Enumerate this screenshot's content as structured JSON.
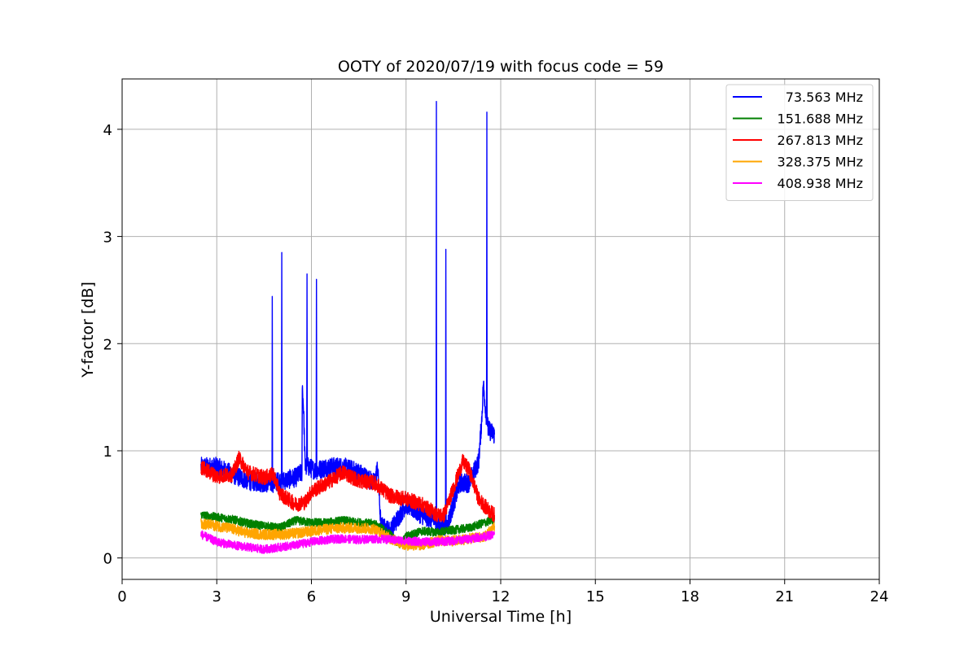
{
  "chart_data": {
    "type": "line",
    "title": "OOTY of 2020/07/19 with focus code = 59",
    "xlabel": "Universal Time [h]",
    "ylabel": "Y-factor [dB]",
    "xlim": [
      0,
      24
    ],
    "ylim": [
      -0.2,
      4.47
    ],
    "xticks": [
      0,
      3,
      6,
      9,
      12,
      15,
      18,
      21,
      24
    ],
    "yticks": [
      0,
      1,
      2,
      3,
      4
    ],
    "grid": true,
    "legend_position": "top-right",
    "series": [
      {
        "name": "73.563 MHz",
        "color": "#0000ff",
        "noise": 0.09,
        "x": [
          2.5,
          3.0,
          3.5,
          4.0,
          4.5,
          4.75,
          4.76,
          4.77,
          4.8,
          5.0,
          5.05,
          5.06,
          5.07,
          5.1,
          5.5,
          5.7,
          5.71,
          5.75,
          5.8,
          5.85,
          5.86,
          5.87,
          5.9,
          6.1,
          6.15,
          6.16,
          6.17,
          6.2,
          6.5,
          7.0,
          7.5,
          8.0,
          8.1,
          8.2,
          8.5,
          9.0,
          9.5,
          9.9,
          9.95,
          9.96,
          9.97,
          10.0,
          10.2,
          10.25,
          10.26,
          10.27,
          10.3,
          10.7,
          11.0,
          11.3,
          11.4,
          11.45,
          11.55,
          11.56,
          11.57,
          11.6,
          11.8
        ],
        "y": [
          0.85,
          0.85,
          0.78,
          0.72,
          0.7,
          0.7,
          2.44,
          0.7,
          0.7,
          0.72,
          0.72,
          2.85,
          0.72,
          0.72,
          0.75,
          0.8,
          1.62,
          1.4,
          0.85,
          0.85,
          2.65,
          0.85,
          0.85,
          0.82,
          0.82,
          2.6,
          0.82,
          0.82,
          0.85,
          0.85,
          0.8,
          0.7,
          0.85,
          0.3,
          0.25,
          0.5,
          0.4,
          0.35,
          0.35,
          4.26,
          0.3,
          0.3,
          0.3,
          0.3,
          2.88,
          0.3,
          0.3,
          0.7,
          0.7,
          0.9,
          1.3,
          1.62,
          1.3,
          4.16,
          1.3,
          1.2,
          1.15
        ]
      },
      {
        "name": "151.688 MHz",
        "color": "#008000",
        "noise": 0.04,
        "x": [
          2.5,
          3.0,
          3.5,
          4.0,
          4.5,
          5.0,
          5.5,
          6.0,
          6.5,
          7.0,
          7.5,
          8.0,
          8.5,
          8.8,
          9.0,
          9.5,
          10.0,
          10.5,
          11.0,
          11.5,
          11.8
        ],
        "y": [
          0.4,
          0.38,
          0.36,
          0.32,
          0.3,
          0.28,
          0.35,
          0.33,
          0.33,
          0.35,
          0.33,
          0.32,
          0.22,
          0.12,
          0.2,
          0.25,
          0.24,
          0.26,
          0.28,
          0.33,
          0.36
        ]
      },
      {
        "name": "267.813 MHz",
        "color": "#ff0000",
        "noise": 0.07,
        "x": [
          2.5,
          3.0,
          3.5,
          3.7,
          4.0,
          4.5,
          4.8,
          5.0,
          5.5,
          5.8,
          6.0,
          6.5,
          7.0,
          7.5,
          8.0,
          8.5,
          9.0,
          9.5,
          10.0,
          10.2,
          10.5,
          10.8,
          11.0,
          11.3,
          11.6,
          11.8
        ],
        "y": [
          0.85,
          0.76,
          0.78,
          0.93,
          0.8,
          0.75,
          0.78,
          0.6,
          0.5,
          0.52,
          0.62,
          0.7,
          0.8,
          0.72,
          0.7,
          0.58,
          0.55,
          0.5,
          0.4,
          0.4,
          0.65,
          0.9,
          0.82,
          0.55,
          0.45,
          0.4
        ]
      },
      {
        "name": "328.375 MHz",
        "color": "#ffa500",
        "noise": 0.05,
        "x": [
          2.5,
          3.0,
          3.5,
          4.0,
          4.5,
          5.0,
          5.5,
          6.0,
          6.5,
          7.0,
          7.5,
          8.0,
          8.5,
          9.0,
          9.5,
          10.0,
          10.5,
          11.0,
          11.5,
          11.8
        ],
        "y": [
          0.32,
          0.3,
          0.27,
          0.23,
          0.22,
          0.22,
          0.23,
          0.25,
          0.27,
          0.28,
          0.28,
          0.27,
          0.18,
          0.12,
          0.12,
          0.16,
          0.16,
          0.18,
          0.2,
          0.3
        ]
      },
      {
        "name": "408.938 MHz",
        "color": "#ff00ff",
        "noise": 0.04,
        "x": [
          2.5,
          3.0,
          3.5,
          4.0,
          4.5,
          5.0,
          5.5,
          6.0,
          6.5,
          7.0,
          7.5,
          8.0,
          8.5,
          9.0,
          9.5,
          10.0,
          10.5,
          11.0,
          11.5,
          11.8
        ],
        "y": [
          0.22,
          0.15,
          0.12,
          0.1,
          0.08,
          0.1,
          0.12,
          0.15,
          0.17,
          0.18,
          0.17,
          0.18,
          0.17,
          0.16,
          0.15,
          0.15,
          0.16,
          0.18,
          0.2,
          0.22
        ]
      }
    ]
  }
}
